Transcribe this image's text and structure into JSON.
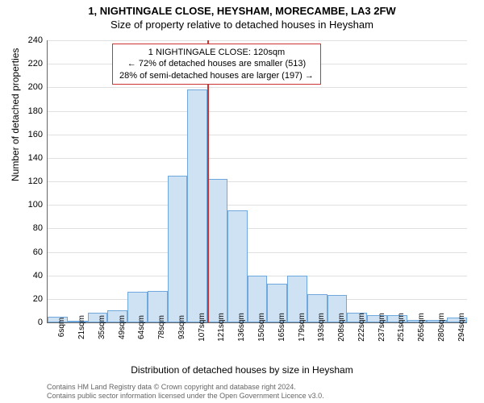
{
  "title_main": "1, NIGHTINGALE CLOSE, HEYSHAM, MORECAMBE, LA3 2FW",
  "title_sub": "Size of property relative to detached houses in Heysham",
  "ylabel": "Number of detached properties",
  "xlabel": "Distribution of detached houses by size in Heysham",
  "info": {
    "line1": "1 NIGHTINGALE CLOSE: 120sqm",
    "line2": "← 72% of detached houses are smaller (513)",
    "line3": "28% of semi-detached houses are larger (197) →"
  },
  "chart": {
    "type": "histogram",
    "ylim": [
      0,
      240
    ],
    "ytick_step": 20,
    "xcategories": [
      "6sqm",
      "21sqm",
      "35sqm",
      "49sqm",
      "64sqm",
      "78sqm",
      "93sqm",
      "107sqm",
      "121sqm",
      "136sqm",
      "150sqm",
      "165sqm",
      "179sqm",
      "193sqm",
      "208sqm",
      "222sqm",
      "237sqm",
      "251sqm",
      "265sqm",
      "280sqm",
      "294sqm"
    ],
    "values": [
      5,
      0,
      8,
      10,
      26,
      27,
      125,
      198,
      122,
      95,
      40,
      33,
      40,
      24,
      23,
      8,
      6,
      6,
      2,
      2,
      4
    ],
    "bar_fill": "#cfe2f3",
    "bar_stroke": "#6fa8dc",
    "grid_color": "#e0e0e0",
    "axis_color": "#666666",
    "vline_color": "#cc3333",
    "vline_index": 8
  },
  "footer": {
    "line1": "Contains HM Land Registry data © Crown copyright and database right 2024.",
    "line2": "Contains public sector information licensed under the Open Government Licence v3.0."
  }
}
